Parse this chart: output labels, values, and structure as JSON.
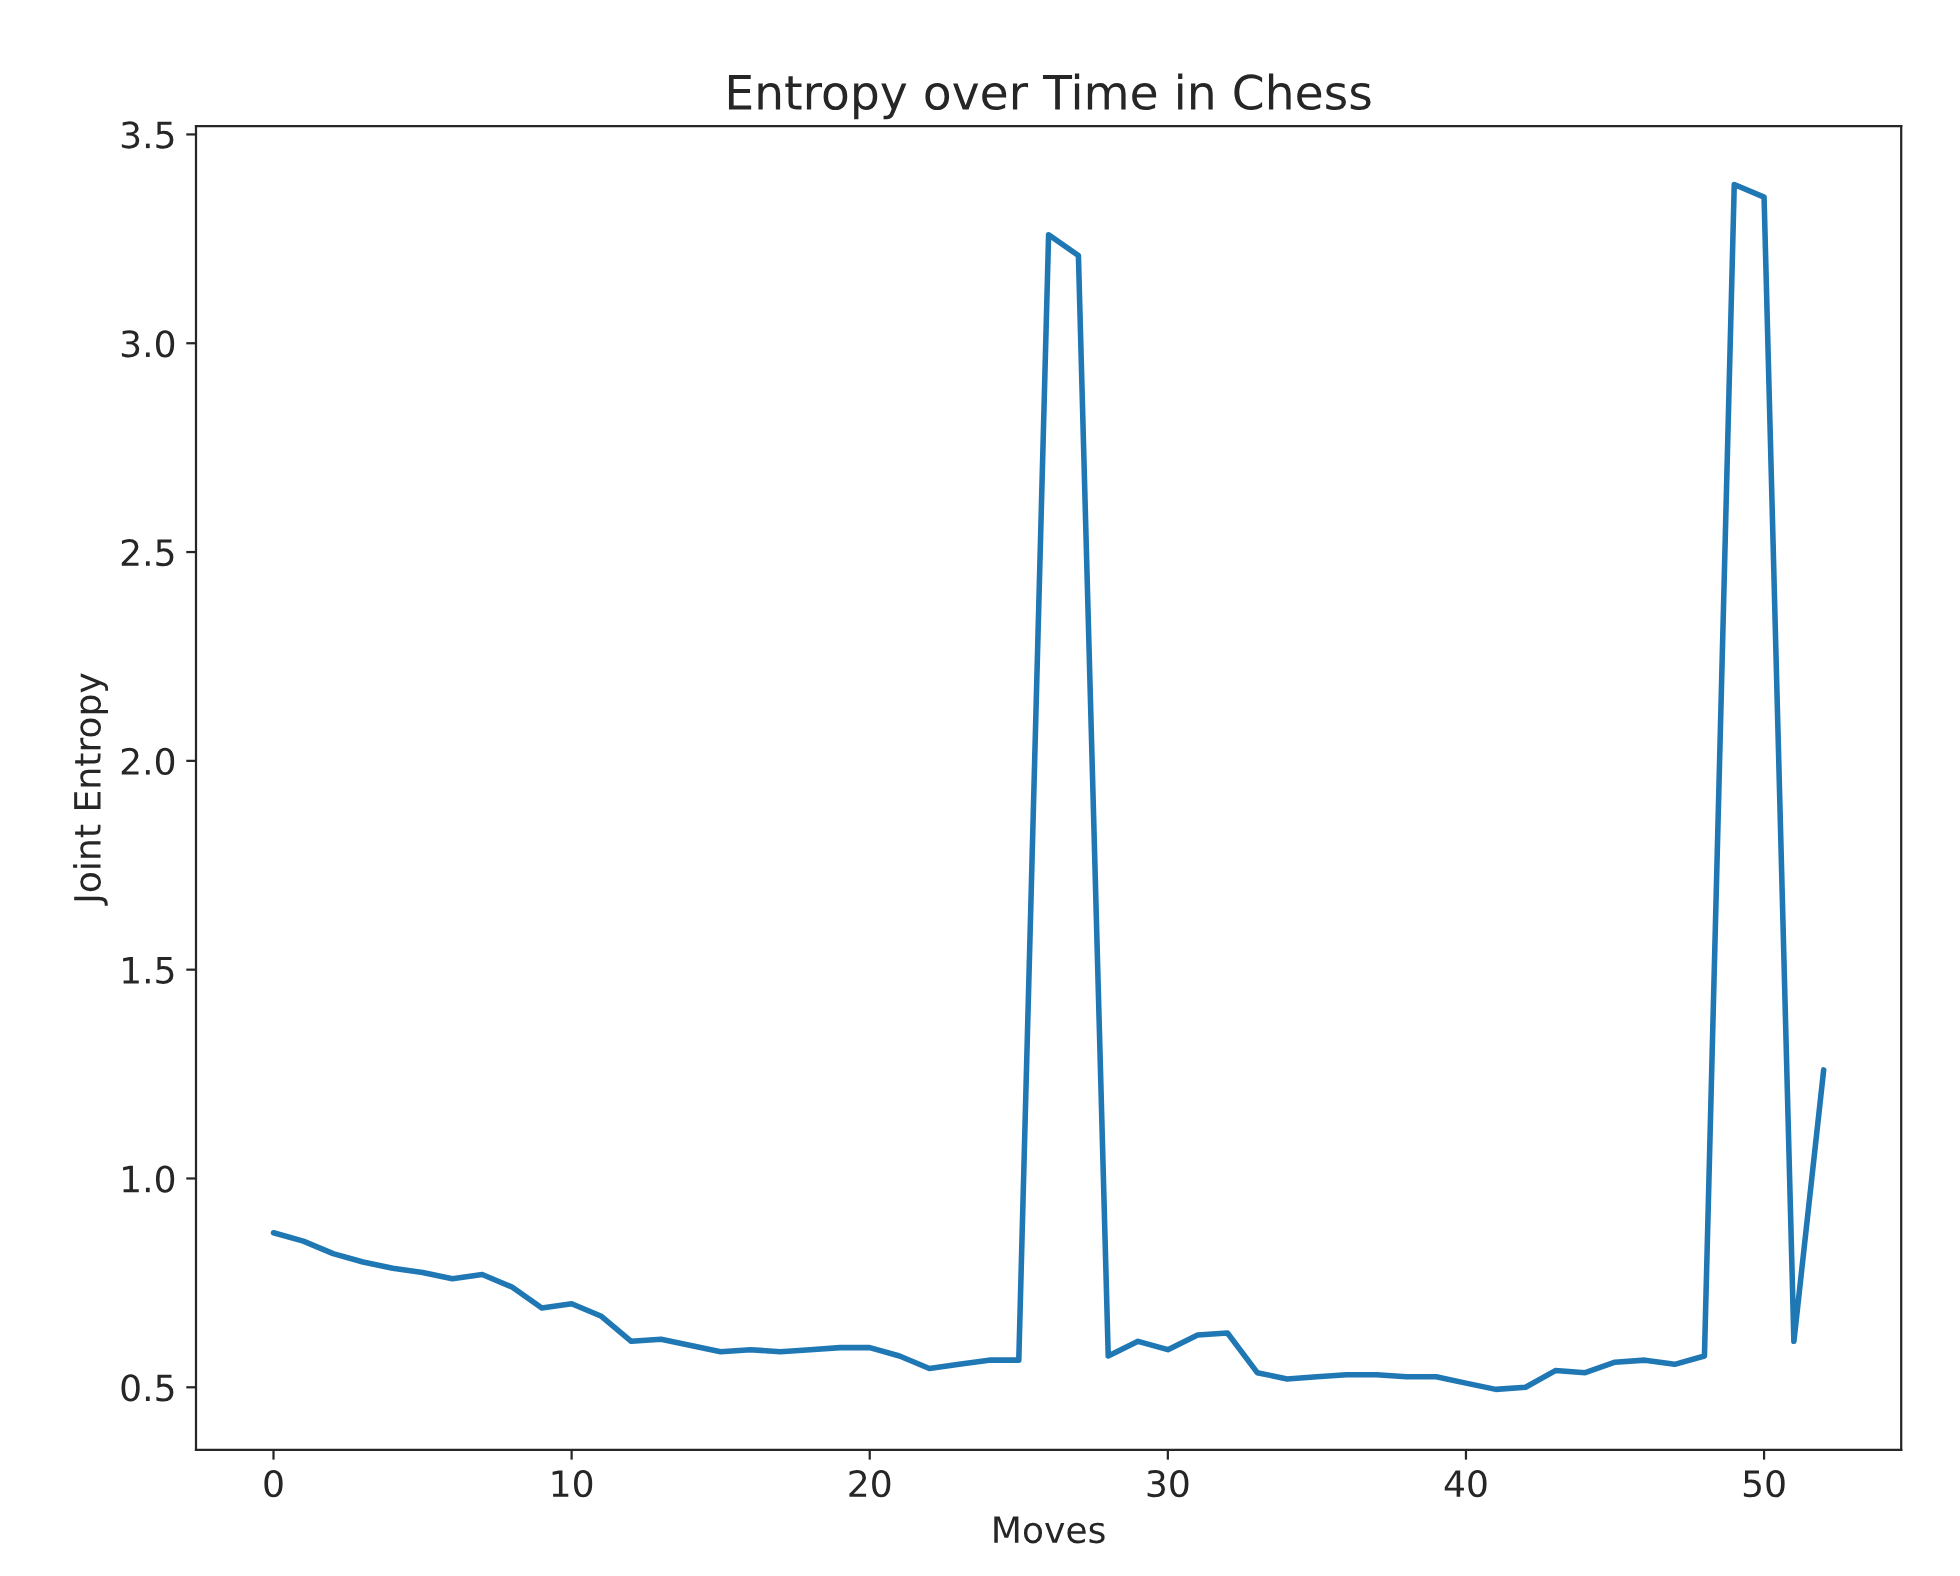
{
  "chart_data": {
    "type": "line",
    "title": "Entropy over Time in Chess",
    "xlabel": "Moves",
    "ylabel": "Joint Entropy",
    "x": [
      0,
      1,
      2,
      3,
      4,
      5,
      6,
      7,
      8,
      9,
      10,
      11,
      12,
      13,
      14,
      15,
      16,
      17,
      18,
      19,
      20,
      21,
      22,
      23,
      24,
      25,
      26,
      27,
      28,
      29,
      30,
      31,
      32,
      33,
      34,
      35,
      36,
      37,
      38,
      39,
      40,
      41,
      42,
      43,
      44,
      45,
      46,
      47,
      48,
      49,
      50,
      51,
      52
    ],
    "series": [
      {
        "color": "#1f77b4",
        "values": [
          0.87,
          0.85,
          0.82,
          0.8,
          0.785,
          0.775,
          0.76,
          0.77,
          0.74,
          0.69,
          0.7,
          0.67,
          0.61,
          0.615,
          0.6,
          0.585,
          0.59,
          0.585,
          0.59,
          0.595,
          0.595,
          0.575,
          0.545,
          0.555,
          0.565,
          0.565,
          3.26,
          3.21,
          0.575,
          0.61,
          0.59,
          0.625,
          0.63,
          0.535,
          0.52,
          0.525,
          0.53,
          0.53,
          0.525,
          0.525,
          0.51,
          0.495,
          0.5,
          0.54,
          0.535,
          0.56,
          0.565,
          0.555,
          0.575,
          3.38,
          3.35,
          0.61,
          1.26
        ]
      }
    ],
    "xlim": [
      -2.6,
      54.6
    ],
    "ylim": [
      0.35,
      3.52
    ],
    "xticks": [
      0,
      10,
      20,
      30,
      40,
      50
    ],
    "yticks": [
      0.5,
      {
        "value": 1,
        "label": "1.0"
      },
      1.5,
      {
        "value": 2,
        "label": "2.0"
      },
      2.5,
      {
        "value": 3,
        "label": "3.0"
      },
      3.5
    ],
    "grid": false,
    "legend": false
  }
}
